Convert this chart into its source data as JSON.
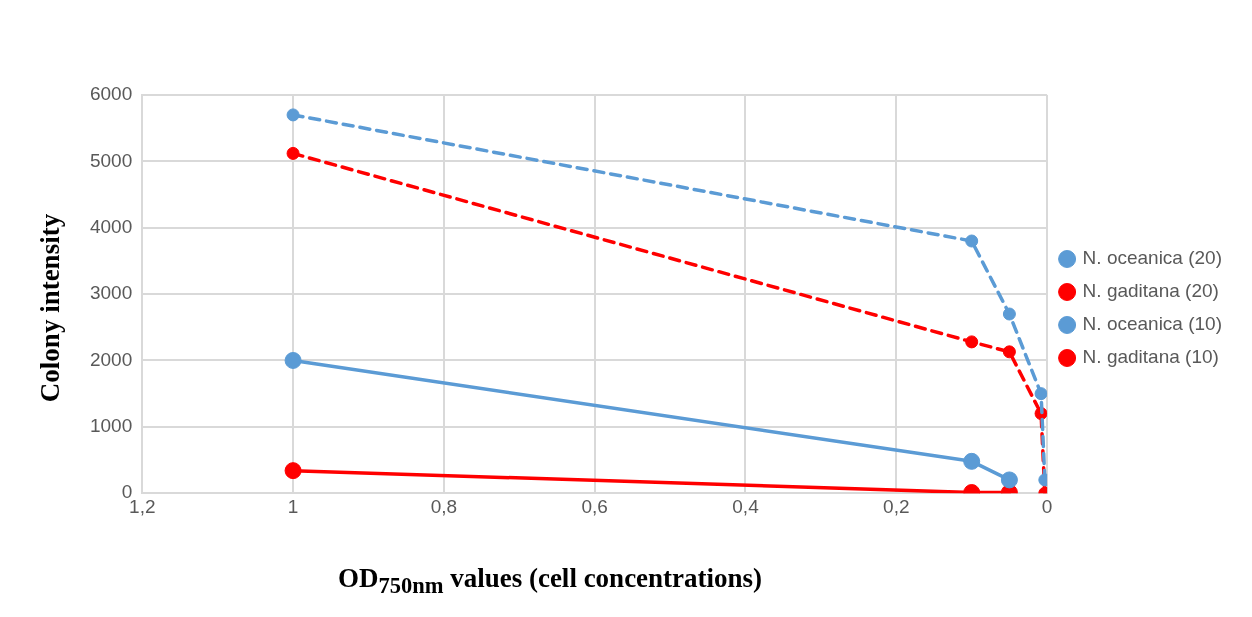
{
  "chart_data": {
    "type": "line",
    "xlabel": "OD$_{750nm}$ values (cell concentrations)",
    "ylabel": "Colony intensity",
    "xlim": [
      1.2,
      0
    ],
    "xticks": [
      {
        "value": 1.2,
        "label": "1,2"
      },
      1,
      {
        "value": 0.8,
        "label": "0,8"
      },
      {
        "value": 0.6,
        "label": "0,6"
      },
      {
        "value": 0.4,
        "label": "0,4"
      },
      {
        "value": 0.2,
        "label": "0,2"
      },
      0
    ],
    "ylim": [
      0,
      6000
    ],
    "yticks": [
      0,
      1000,
      2000,
      3000,
      4000,
      5000,
      6000
    ],
    "grid": true,
    "legend": "right",
    "marker": "circle",
    "series": [
      {
        "name": "N. oceanica (20)",
        "color": "#5b9bd5",
        "line_style": "solid",
        "x": [
          1,
          0.1,
          0.05
        ],
        "values": [
          2000,
          480,
          200
        ]
      },
      {
        "name": "N. gaditana (20)",
        "color": "#ff0000",
        "line_style": "solid",
        "x": [
          1,
          0.1,
          0.05
        ],
        "values": [
          340,
          10,
          10
        ]
      },
      {
        "name": "N. oceanica (10)",
        "color": "#5b9bd5",
        "line_style": "dashed",
        "x": [
          1,
          0.1,
          0.05,
          0.008,
          0.003
        ],
        "values": [
          5700,
          3800,
          2700,
          1500,
          200
        ]
      },
      {
        "name": "N. gaditana (10)",
        "color": "#ff0000",
        "line_style": "dashed",
        "x": [
          1,
          0.1,
          0.05,
          0.008,
          0.003
        ],
        "values": [
          5120,
          2280,
          2130,
          1200,
          0
        ]
      }
    ]
  }
}
